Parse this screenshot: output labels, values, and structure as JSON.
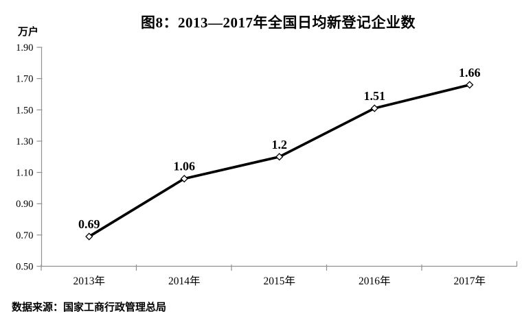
{
  "chart_data": {
    "type": "line",
    "title": "图8：2013—2017年全国日均新登记企业数",
    "ylabel": "万户",
    "xlabel": "",
    "categories": [
      "2013年",
      "2014年",
      "2015年",
      "2016年",
      "2017年"
    ],
    "values": [
      0.69,
      1.06,
      1.2,
      1.51,
      1.66
    ],
    "point_labels": [
      "0.69",
      "1.06",
      "1.2",
      "1.51",
      "1.66"
    ],
    "yticks": [
      "0.50",
      "0.70",
      "0.90",
      "1.10",
      "1.30",
      "1.50",
      "1.70",
      "1.90"
    ],
    "ylim": [
      0.5,
      1.9
    ],
    "grid": false,
    "legend": "none",
    "line_color": "#000000",
    "marker": "open-diamond",
    "marker_fill": "#ffffff",
    "axis_color": "#909090",
    "text_color": "#000000",
    "source_note": "数据来源：国家工商行政管理总局"
  }
}
